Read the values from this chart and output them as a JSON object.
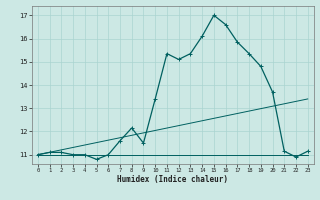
{
  "xlabel": "Humidex (Indice chaleur)",
  "background_color": "#cce8e4",
  "grid_color": "#aad4d0",
  "line_color": "#006060",
  "xlim": [
    -0.5,
    23.5
  ],
  "ylim": [
    10.6,
    17.4
  ],
  "xticks": [
    0,
    1,
    2,
    3,
    4,
    5,
    6,
    7,
    8,
    9,
    10,
    11,
    12,
    13,
    14,
    15,
    16,
    17,
    18,
    19,
    20,
    21,
    22,
    23
  ],
  "yticks": [
    11,
    12,
    13,
    14,
    15,
    16,
    17
  ],
  "series": [
    {
      "x": [
        0,
        1,
        2,
        3,
        4,
        5,
        6,
        7,
        8,
        9,
        10,
        11,
        12,
        13,
        14,
        15,
        16,
        17,
        18,
        19,
        20,
        21,
        22,
        23
      ],
      "y": [
        11,
        11,
        11,
        11,
        11,
        11,
        11,
        11,
        11,
        11,
        11,
        11,
        11,
        11,
        11,
        11,
        11,
        11,
        11,
        11,
        11,
        11,
        11,
        11
      ],
      "marker": false,
      "linewidth": 0.7
    },
    {
      "x": [
        0,
        23
      ],
      "y": [
        11.0,
        13.4
      ],
      "marker": false,
      "linewidth": 0.7
    },
    {
      "x": [
        0,
        1,
        2,
        3,
        4,
        5,
        6,
        7,
        8,
        9,
        10,
        11,
        12,
        13,
        14,
        15,
        16,
        17,
        18,
        19,
        20,
        21,
        22,
        23
      ],
      "y": [
        11.0,
        11.1,
        11.1,
        11.0,
        11.0,
        10.8,
        11.0,
        11.6,
        12.15,
        11.5,
        13.4,
        15.35,
        15.1,
        15.35,
        16.1,
        17.0,
        16.6,
        15.85,
        15.35,
        14.8,
        13.7,
        11.15,
        10.9,
        11.15
      ],
      "marker": true,
      "linewidth": 0.9
    }
  ]
}
